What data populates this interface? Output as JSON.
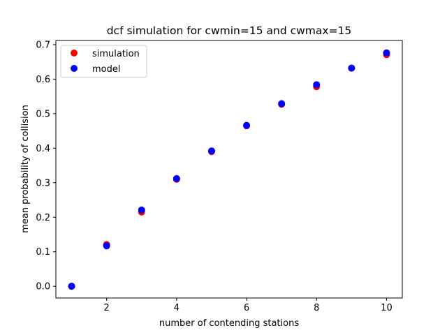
{
  "chart_data": {
    "type": "scatter",
    "title": "dcf simulation for cwmin=15 and cwmax=15",
    "xlabel": "number of contending stations",
    "ylabel": "mean probability of collision",
    "xlim": [
      0.55,
      10.45
    ],
    "ylim": [
      -0.034,
      0.712
    ],
    "xticks": [
      2,
      4,
      6,
      8,
      10
    ],
    "yticks": [
      0.0,
      0.1,
      0.2,
      0.3,
      0.4,
      0.5,
      0.6,
      0.7
    ],
    "ytick_labels": [
      "0.0",
      "0.1",
      "0.2",
      "0.3",
      "0.4",
      "0.5",
      "0.6",
      "0.7"
    ],
    "grid": false,
    "legend_position": "upper-left",
    "series": [
      {
        "name": "simulation",
        "color": "#ff0000",
        "x": [
          1,
          2,
          3,
          4,
          5,
          6,
          7,
          8,
          9,
          10
        ],
        "y": [
          0.0,
          0.121,
          0.215,
          0.31,
          0.39,
          0.465,
          0.527,
          0.578,
          0.632,
          0.671
        ]
      },
      {
        "name": "model",
        "color": "#0000ff",
        "x": [
          1,
          2,
          3,
          4,
          5,
          6,
          7,
          8,
          9,
          10
        ],
        "y": [
          0.0,
          0.117,
          0.221,
          0.312,
          0.392,
          0.466,
          0.529,
          0.584,
          0.632,
          0.676
        ]
      }
    ]
  }
}
